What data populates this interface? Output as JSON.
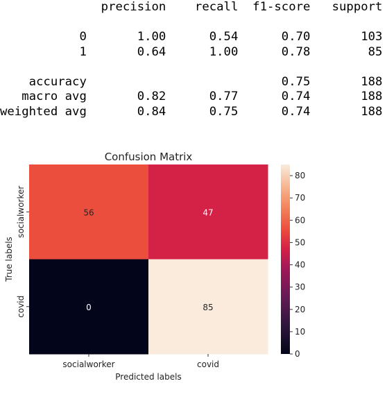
{
  "report": {
    "header": [
      "precision",
      "recall",
      "f1-score",
      "support"
    ],
    "rows": [
      {
        "label": "0",
        "precision": "1.00",
        "recall": "0.54",
        "f1": "0.70",
        "support": "103"
      },
      {
        "label": "1",
        "precision": "0.64",
        "recall": "1.00",
        "f1": "0.78",
        "support": "85"
      }
    ],
    "summary": [
      {
        "label": "accuracy",
        "precision": "",
        "recall": "",
        "f1": "0.75",
        "support": "188"
      },
      {
        "label": "macro avg",
        "precision": "0.82",
        "recall": "0.77",
        "f1": "0.74",
        "support": "188"
      },
      {
        "label": "weighted avg",
        "precision": "0.84",
        "recall": "0.75",
        "f1": "0.74",
        "support": "188"
      }
    ]
  },
  "chart_data": {
    "type": "heatmap",
    "title": "Confusion Matrix",
    "xlabel": "Predicted labels",
    "ylabel": "True labels",
    "x_categories": [
      "socialworker",
      "covid"
    ],
    "y_categories": [
      "socialworker",
      "covid"
    ],
    "values": [
      [
        56,
        47
      ],
      [
        0,
        85
      ]
    ],
    "colorbar": {
      "min": 0,
      "max": 85,
      "ticks": [
        0,
        10,
        20,
        30,
        40,
        50,
        60,
        70,
        80
      ],
      "colormap": "rocket"
    },
    "annotations": true
  }
}
